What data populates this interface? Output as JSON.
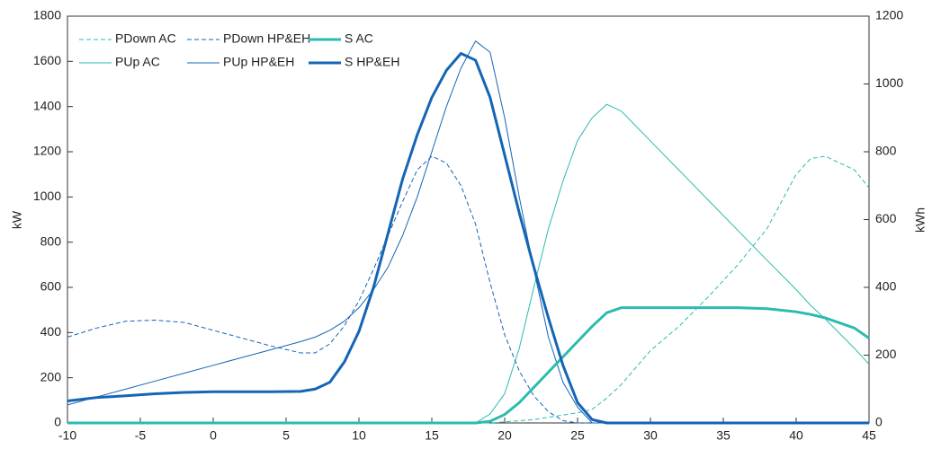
{
  "chart_data": {
    "type": "line",
    "y_label": "kW",
    "y2_label": "kWh",
    "x": [
      -10,
      -8,
      -6,
      -4,
      -2,
      0,
      2,
      4,
      6,
      7,
      8,
      9,
      10,
      11,
      12,
      13,
      14,
      15,
      16,
      17,
      18,
      19,
      20,
      21,
      22,
      23,
      24,
      25,
      26,
      27,
      28,
      30,
      32,
      34,
      36,
      38,
      40,
      41,
      42,
      44,
      45
    ],
    "xlim": [
      -10,
      45
    ],
    "xticks": [
      -10,
      -5,
      0,
      5,
      10,
      15,
      20,
      25,
      30,
      35,
      40,
      45
    ],
    "ylim": [
      0,
      1800
    ],
    "yticks": [
      0,
      200,
      400,
      600,
      800,
      1000,
      1200,
      1400,
      1600,
      1800
    ],
    "y2lim": [
      0,
      1200
    ],
    "y2ticks": [
      0,
      200,
      400,
      600,
      800,
      1000,
      1200
    ],
    "series": [
      {
        "name": "PDown AC",
        "color": "#2bbbb0",
        "style": "dashed",
        "linewidth": 1,
        "values": [
          0,
          0,
          0,
          0,
          0,
          0,
          0,
          0,
          0,
          0,
          0,
          0,
          0,
          0,
          0,
          0,
          0,
          0,
          0,
          0,
          0,
          0,
          5,
          10,
          15,
          25,
          35,
          45,
          60,
          110,
          170,
          320,
          430,
          560,
          700,
          860,
          1100,
          1170,
          1180,
          1120,
          1040
        ]
      },
      {
        "name": "PUp AC",
        "color": "#2bbbb0",
        "style": "solid",
        "linewidth": 1,
        "values": [
          0,
          0,
          0,
          0,
          0,
          0,
          0,
          0,
          0,
          0,
          0,
          0,
          0,
          0,
          0,
          0,
          0,
          0,
          0,
          0,
          0,
          40,
          130,
          330,
          600,
          860,
          1070,
          1250,
          1350,
          1410,
          1380,
          1248,
          1116,
          984,
          852,
          720,
          590,
          520,
          460,
          330,
          260
        ]
      },
      {
        "name": "PDown HP&EH",
        "color": "#1565b5",
        "style": "dashed",
        "linewidth": 1,
        "values": [
          380,
          420,
          450,
          455,
          445,
          410,
          375,
          340,
          310,
          310,
          350,
          430,
          540,
          680,
          830,
          980,
          1120,
          1180,
          1150,
          1050,
          880,
          620,
          390,
          230,
          120,
          50,
          10,
          0,
          0,
          0,
          0,
          0,
          0,
          0,
          0,
          0,
          0,
          0,
          0,
          0,
          0
        ]
      },
      {
        "name": "PUp HP&EH",
        "color": "#1565b5",
        "style": "solid",
        "linewidth": 1,
        "values": [
          80,
          115,
          150,
          185,
          220,
          255,
          290,
          325,
          360,
          380,
          410,
          450,
          510,
          590,
          690,
          830,
          1000,
          1200,
          1400,
          1570,
          1690,
          1640,
          1350,
          1000,
          680,
          380,
          180,
          70,
          0,
          0,
          0,
          0,
          0,
          0,
          0,
          0,
          0,
          0,
          0,
          0,
          0
        ]
      },
      {
        "name": "S AC",
        "color": "#2bbbb0",
        "style": "solid",
        "linewidth": 3,
        "axis": "y2",
        "values": [
          0,
          0,
          0,
          0,
          0,
          0,
          0,
          0,
          0,
          0,
          0,
          0,
          0,
          0,
          0,
          0,
          0,
          0,
          0,
          0,
          0,
          5,
          25,
          60,
          105,
          150,
          195,
          240,
          285,
          325,
          340,
          340,
          340,
          340,
          340,
          337,
          328,
          320,
          310,
          280,
          250
        ]
      },
      {
        "name": "S HP&EH",
        "color": "#1565b5",
        "style": "solid",
        "linewidth": 3,
        "axis": "y2",
        "values": [
          65,
          75,
          80,
          86,
          90,
          92,
          92,
          92,
          93,
          100,
          120,
          180,
          270,
          400,
          560,
          720,
          850,
          960,
          1040,
          1090,
          1070,
          960,
          790,
          620,
          460,
          310,
          170,
          60,
          10,
          0,
          0,
          0,
          0,
          0,
          0,
          0,
          0,
          0,
          0,
          0,
          0
        ]
      }
    ]
  }
}
